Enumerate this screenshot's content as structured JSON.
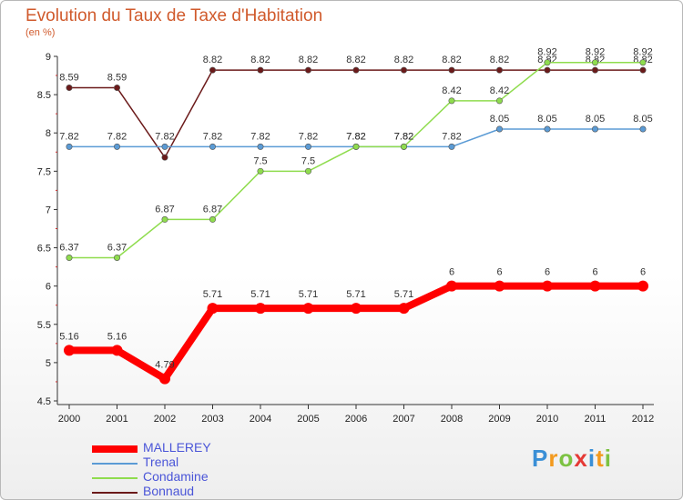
{
  "chart_data": {
    "type": "line",
    "title": "Evolution du Taux de Taxe d'Habitation",
    "ylabel": "(en %)",
    "xlabel": "",
    "categories": [
      "2000",
      "2001",
      "2002",
      "2003",
      "2004",
      "2005",
      "2006",
      "2007",
      "2008",
      "2009",
      "2010",
      "2011",
      "2012"
    ],
    "ylim": [
      4.5,
      9
    ],
    "yticks": [
      "4.5",
      "5",
      "5.5",
      "6",
      "6.5",
      "7",
      "7.5",
      "8",
      "8.5",
      "9"
    ],
    "series": [
      {
        "name": "Bonnaud",
        "color": "#6b1a1a",
        "values": [
          8.59,
          8.59,
          7.68,
          8.82,
          8.82,
          8.82,
          8.82,
          8.82,
          8.82,
          8.82,
          8.82,
          8.82,
          8.82
        ],
        "labels": [
          "8.59",
          "8.59",
          "",
          "8.82",
          "8.82",
          "8.82",
          "8.82",
          "8.82",
          "8.82",
          "8.82",
          "8.82",
          "8.82",
          "8.82"
        ]
      },
      {
        "name": "Trenal",
        "color": "#5b9bd5",
        "values": [
          7.82,
          7.82,
          7.82,
          7.82,
          7.82,
          7.82,
          7.82,
          7.82,
          7.82,
          8.05,
          8.05,
          8.05,
          8.05
        ],
        "labels": [
          "7.82",
          "7.82",
          "7.82",
          "7.82",
          "7.82",
          "7.82",
          "7.82",
          "7.82",
          "7.82",
          "8.05",
          "8.05",
          "8.05",
          "8.05"
        ]
      },
      {
        "name": "Condamine",
        "color": "#8fdc4e",
        "values": [
          6.37,
          6.37,
          6.87,
          6.87,
          7.5,
          7.5,
          7.82,
          7.82,
          8.42,
          8.42,
          8.92,
          8.92,
          8.92
        ],
        "labels": [
          "6.37",
          "6.37",
          "6.87",
          "6.87",
          "7.5",
          "7.5",
          "7.82",
          "7.82",
          "8.42",
          "8.42",
          "8.92",
          "8.92",
          "8.92"
        ]
      },
      {
        "name": "MALLEREY",
        "color": "#ff0000",
        "values": [
          5.16,
          5.16,
          4.79,
          5.71,
          5.71,
          5.71,
          5.71,
          5.71,
          6,
          6,
          6,
          6,
          6
        ],
        "labels": [
          "5.16",
          "5.16",
          "4.79",
          "5.71",
          "5.71",
          "5.71",
          "5.71",
          "5.71",
          "6",
          "6",
          "6",
          "6",
          "6"
        ]
      }
    ],
    "legend_position": "bottom-left"
  },
  "legend": [
    {
      "name": "MALLEREY",
      "color": "#ff0000"
    },
    {
      "name": "Trenal",
      "color": "#5b9bd5"
    },
    {
      "name": "Condamine",
      "color": "#8fdc4e"
    },
    {
      "name": "Bonnaud",
      "color": "#6b1a1a"
    }
  ],
  "logo": {
    "text": "Proxiti"
  }
}
